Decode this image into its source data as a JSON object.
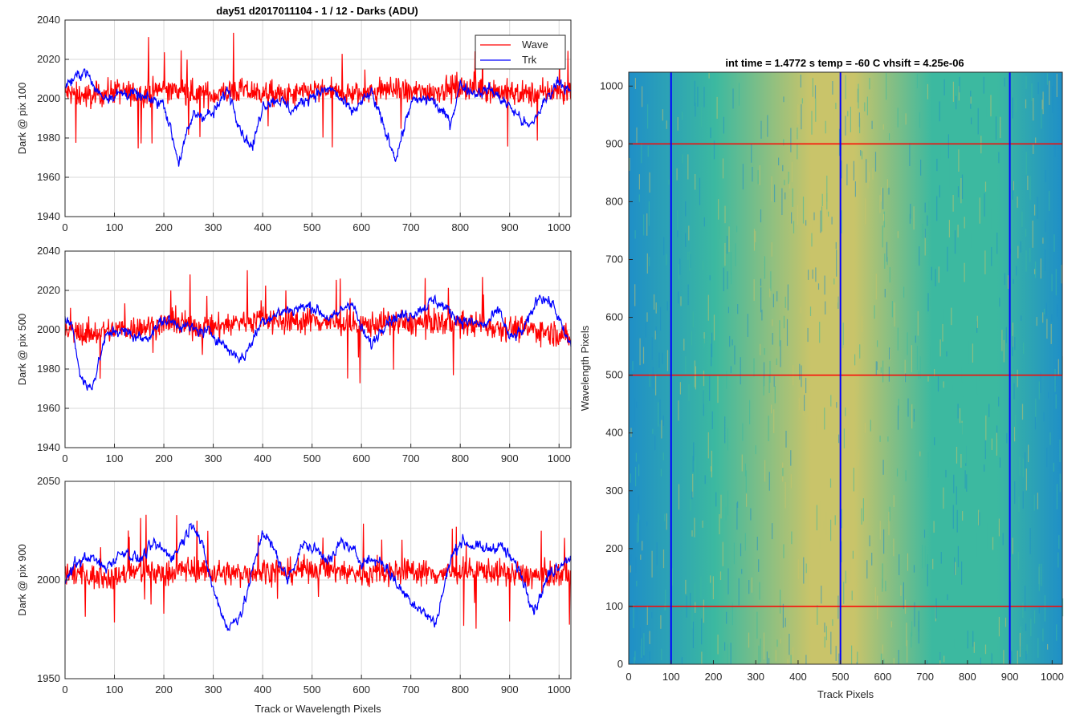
{
  "figure_title": "day51 d2017011104 - 1 / 12 - Darks (ADU)",
  "legend": {
    "wave": "Wave",
    "trk": "Trk"
  },
  "colors": {
    "wave": "#ff0000",
    "trk": "#0000ff",
    "grid": "#d9d9d9",
    "axis": "#262626"
  },
  "chart_data": [
    {
      "type": "line",
      "title": "day51 d2017011104 - 1 / 12 - Darks (ADU)",
      "xlabel": "",
      "ylabel": "Dark @ pix 100",
      "xlim": [
        0,
        1024
      ],
      "ylim": [
        1940,
        2040
      ],
      "xticks": [
        0,
        100,
        200,
        300,
        400,
        500,
        600,
        700,
        800,
        900,
        1000
      ],
      "yticks": [
        1940,
        1960,
        1980,
        2000,
        2020,
        2040
      ],
      "grid": true,
      "legend_position": "top-right",
      "series": [
        {
          "name": "Wave",
          "color": "#ff0000",
          "x": [
            0,
            50,
            100,
            150,
            200,
            250,
            300,
            350,
            400,
            450,
            500,
            550,
            600,
            650,
            700,
            750,
            800,
            850,
            900,
            950,
            1000,
            1024
          ],
          "values": [
            2003,
            2001,
            2004,
            2002,
            2005,
            2003,
            2002,
            2004,
            2003,
            2001,
            2004,
            2003,
            2002,
            2005,
            2003,
            2004,
            2006,
            2005,
            2003,
            2002,
            2004,
            2003
          ]
        },
        {
          "name": "Trk",
          "color": "#0000ff",
          "x": [
            0,
            20,
            40,
            60,
            80,
            100,
            130,
            160,
            200,
            230,
            260,
            300,
            330,
            360,
            380,
            400,
            430,
            460,
            500,
            540,
            580,
            620,
            650,
            670,
            700,
            740,
            780,
            800,
            830,
            860,
            900,
            940,
            970,
            1000,
            1024
          ],
          "values": [
            2007,
            2010,
            2015,
            2005,
            2001,
            2002,
            2003,
            2000,
            1998,
            1968,
            1992,
            1992,
            2005,
            1982,
            1975,
            1997,
            2000,
            1994,
            2002,
            2005,
            1993,
            2003,
            1982,
            1970,
            1998,
            2000,
            1988,
            2007,
            2003,
            2005,
            1996,
            1985,
            1998,
            2010,
            2002
          ]
        }
      ]
    },
    {
      "type": "line",
      "title": "",
      "xlabel": "",
      "ylabel": "Dark @ pix 500",
      "xlim": [
        0,
        1024
      ],
      "ylim": [
        1940,
        2040
      ],
      "xticks": [
        0,
        100,
        200,
        300,
        400,
        500,
        600,
        700,
        800,
        900,
        1000
      ],
      "yticks": [
        1940,
        1960,
        1980,
        2000,
        2020,
        2040
      ],
      "grid": true,
      "series": [
        {
          "name": "Wave",
          "color": "#ff0000",
          "x": [
            0,
            50,
            100,
            150,
            200,
            250,
            300,
            350,
            400,
            450,
            500,
            550,
            600,
            650,
            700,
            750,
            800,
            850,
            900,
            950,
            1000,
            1024
          ],
          "values": [
            1999,
            1998,
            2000,
            2001,
            2003,
            2002,
            2001,
            2004,
            2006,
            2004,
            2005,
            2003,
            2002,
            2004,
            2003,
            2004,
            2003,
            2002,
            2001,
            2000,
            1998,
            1995
          ]
        },
        {
          "name": "Trk",
          "color": "#0000ff",
          "x": [
            0,
            15,
            30,
            45,
            60,
            80,
            100,
            130,
            160,
            200,
            230,
            260,
            300,
            330,
            360,
            400,
            450,
            500,
            540,
            580,
            600,
            620,
            650,
            700,
            750,
            800,
            850,
            880,
            900,
            930,
            960,
            990,
            1010,
            1024
          ],
          "values": [
            2005,
            2002,
            1978,
            1970,
            1975,
            1995,
            2000,
            1998,
            1995,
            2005,
            2003,
            2000,
            1998,
            1990,
            1985,
            2005,
            2010,
            2012,
            2005,
            2015,
            2000,
            1992,
            2005,
            2008,
            2015,
            2005,
            2002,
            2010,
            1995,
            2000,
            2018,
            2012,
            1998,
            1992
          ]
        }
      ]
    },
    {
      "type": "line",
      "title": "",
      "xlabel": "Track or Wavelength Pixels",
      "ylabel": "Dark @ pix 900",
      "xlim": [
        0,
        1024
      ],
      "ylim": [
        1950,
        2050
      ],
      "xticks": [
        0,
        100,
        200,
        300,
        400,
        500,
        600,
        700,
        800,
        900,
        1000
      ],
      "yticks": [
        1950,
        2000,
        2050
      ],
      "grid": true,
      "series": [
        {
          "name": "Wave",
          "color": "#ff0000",
          "x": [
            0,
            50,
            100,
            150,
            200,
            250,
            300,
            350,
            400,
            450,
            500,
            550,
            600,
            650,
            700,
            750,
            800,
            850,
            900,
            950,
            1000,
            1024
          ],
          "values": [
            2004,
            2002,
            2001,
            2005,
            2003,
            2006,
            2004,
            2003,
            2005,
            2004,
            2006,
            2005,
            2003,
            2004,
            2005,
            2003,
            2004,
            2005,
            2003,
            2002,
            2003,
            2004
          ]
        },
        {
          "name": "Trk",
          "color": "#0000ff",
          "x": [
            0,
            20,
            50,
            80,
            120,
            150,
            180,
            220,
            260,
            280,
            300,
            330,
            360,
            400,
            430,
            450,
            480,
            510,
            540,
            560,
            600,
            640,
            680,
            720,
            750,
            780,
            800,
            850,
            880,
            920,
            950,
            980,
            1000,
            1024
          ],
          "values": [
            1998,
            2008,
            2012,
            2006,
            2015,
            2010,
            2018,
            2012,
            2030,
            2015,
            1995,
            1975,
            1985,
            2025,
            2012,
            2000,
            2018,
            2015,
            2010,
            2020,
            2010,
            2010,
            1995,
            1985,
            1978,
            2010,
            2020,
            2015,
            2018,
            2005,
            1985,
            2003,
            2008,
            2012
          ]
        }
      ]
    },
    {
      "type": "heatmap",
      "title": "int time = 1.4772 s    temp = -60 C    vhsift = 4.25e-06",
      "xlabel": "Track Pixels",
      "ylabel": "Wavelength Pixels",
      "xlim": [
        0,
        1024
      ],
      "ylim": [
        0,
        1024
      ],
      "xticks": [
        0,
        100,
        200,
        300,
        400,
        500,
        600,
        700,
        800,
        900,
        1000
      ],
      "yticks": [
        0,
        100,
        200,
        300,
        400,
        500,
        600,
        700,
        800,
        900,
        1000
      ],
      "colormap_low": "#1f8fc7",
      "colormap_mid": "#3cb9a0",
      "colormap_high": "#c9c46a",
      "vertical_lines": [
        100,
        500,
        900
      ],
      "horizontal_lines": [
        100,
        500,
        900
      ],
      "vertical_line_color": "#0000ff",
      "horizontal_line_color": "#ff0000"
    }
  ]
}
